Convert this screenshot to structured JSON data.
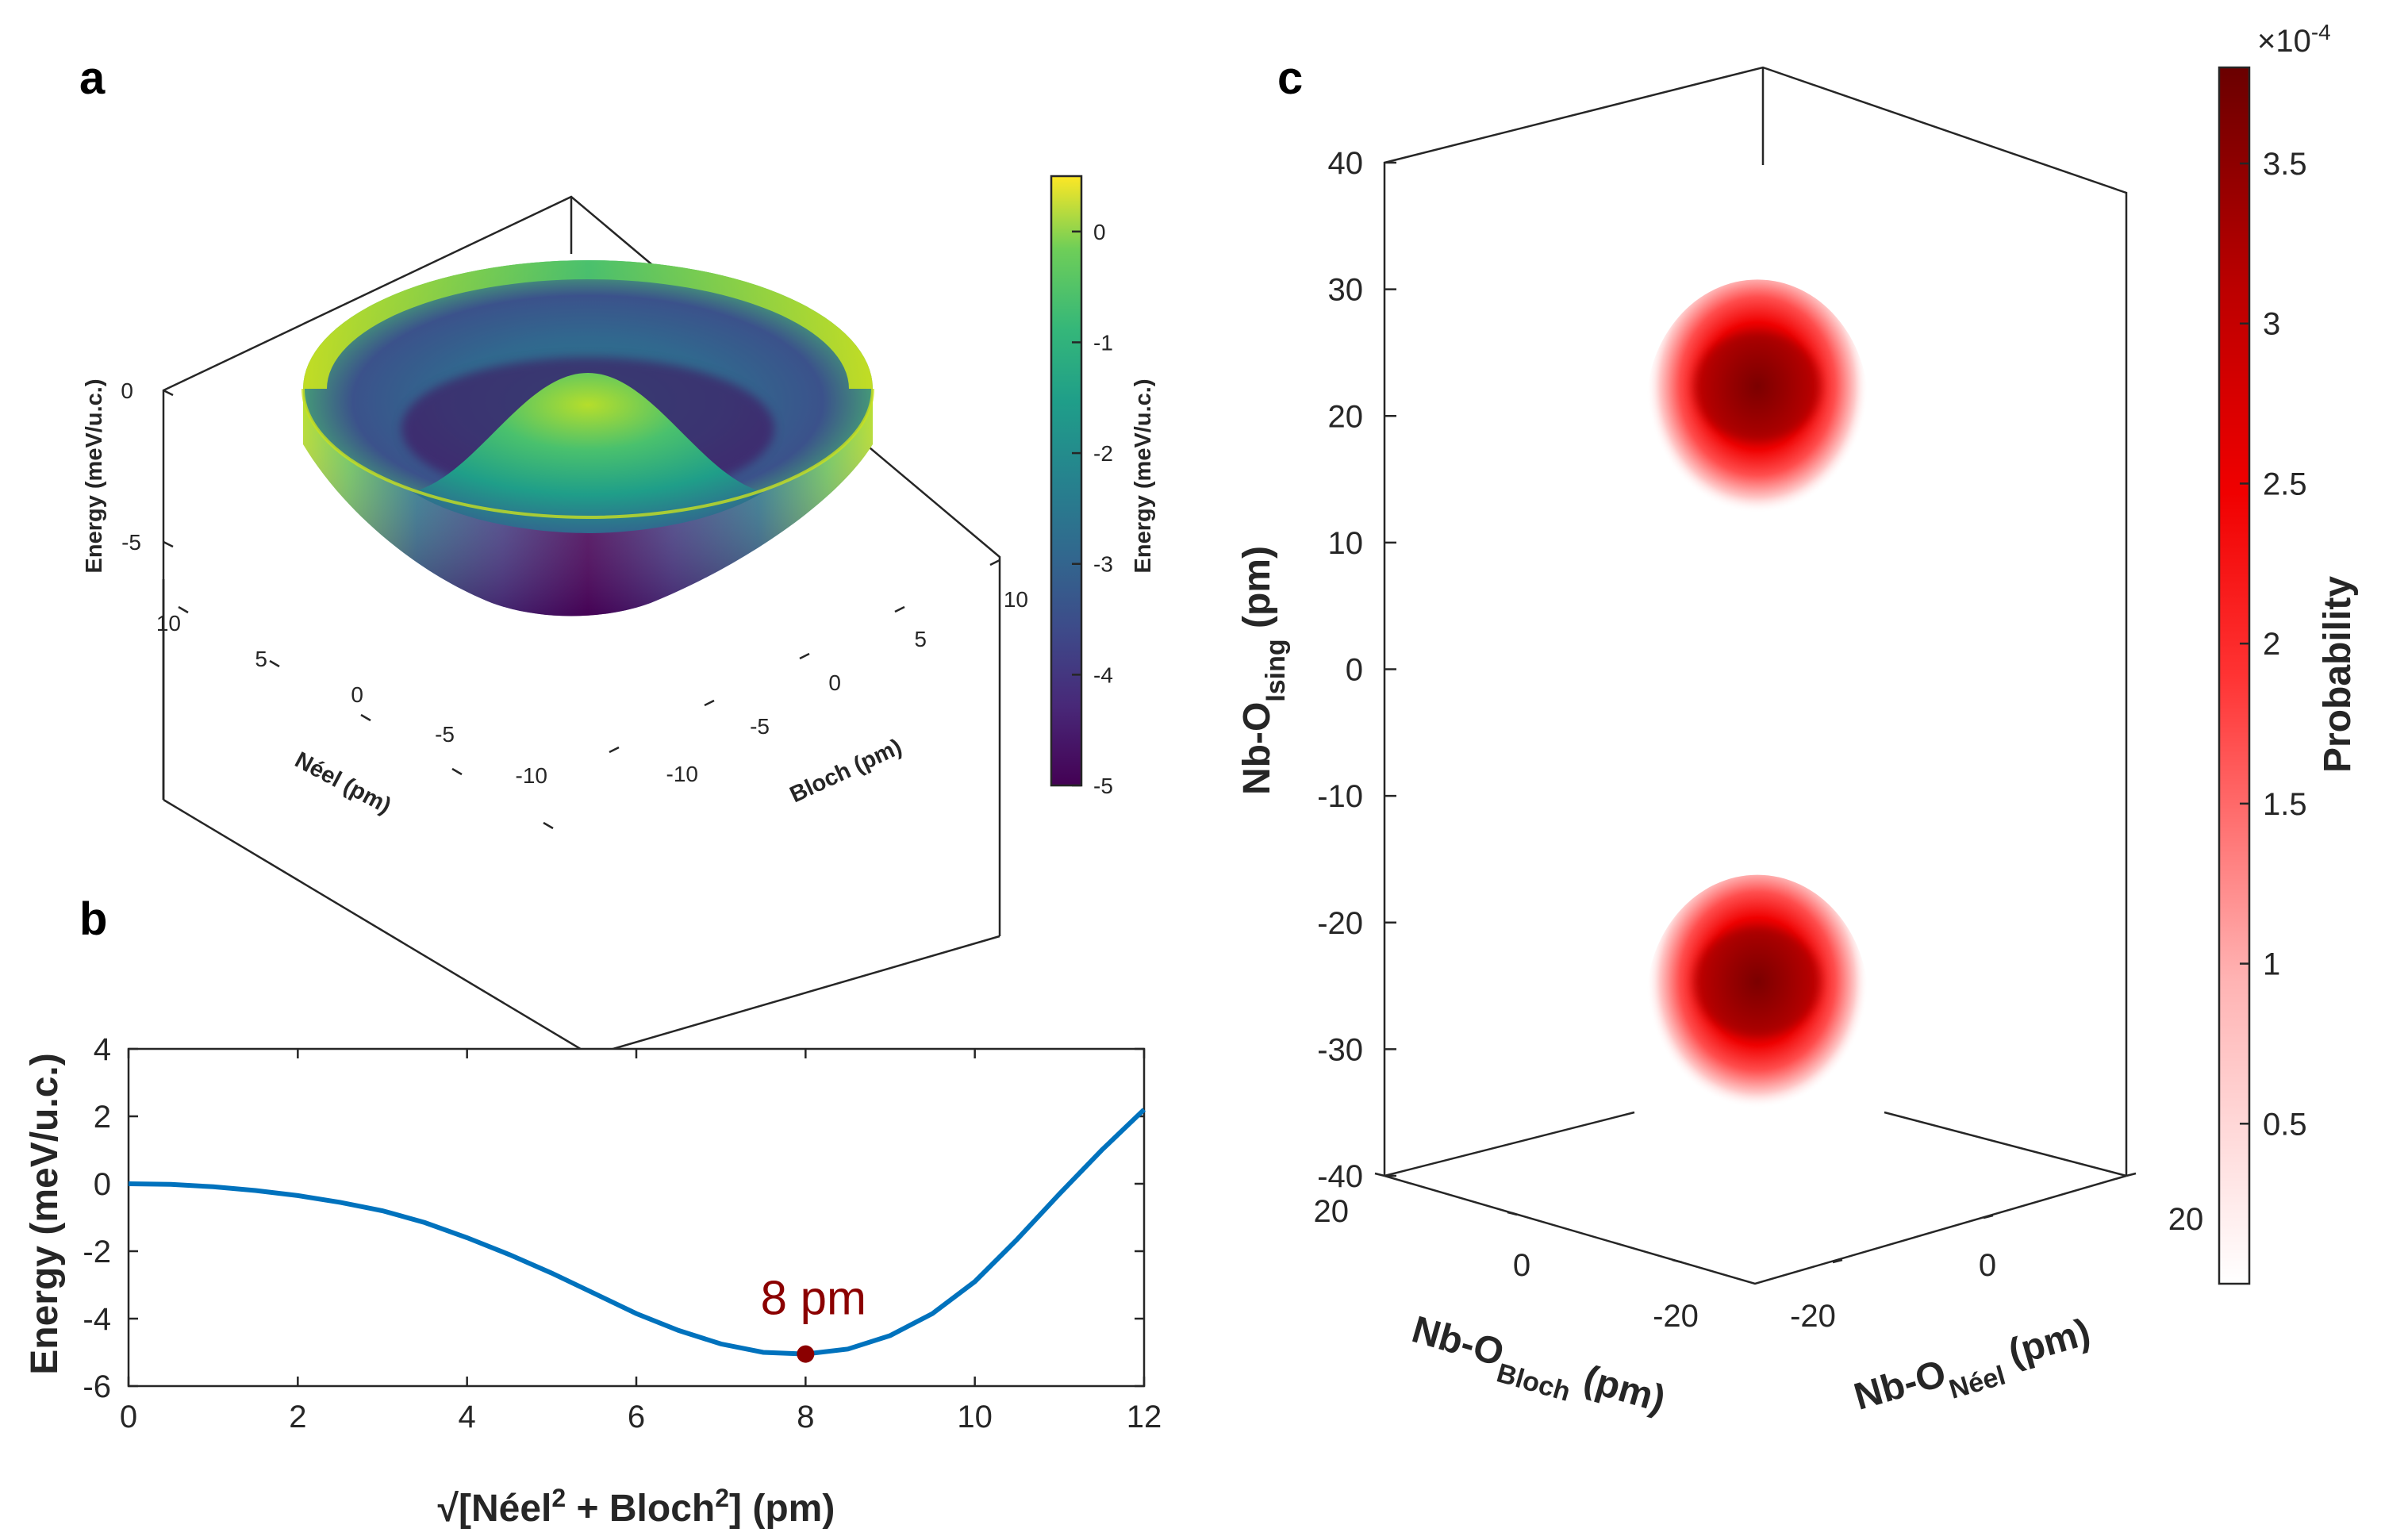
{
  "figure": {
    "panel_letters": {
      "a": "a",
      "b": "b",
      "c": "c"
    }
  },
  "chart_data": [
    {
      "id": "a",
      "type": "surface3d",
      "colormap": "viridis",
      "axes": {
        "x": {
          "label": "Néel (pm)",
          "ticks": [
            "10",
            "5",
            "0",
            "-5",
            "-10"
          ],
          "range": [
            -12,
            12
          ]
        },
        "y": {
          "label": "Bloch (pm)",
          "ticks": [
            "-10",
            "-5",
            "0",
            "5",
            "10"
          ],
          "range": [
            -12,
            12
          ]
        },
        "z": {
          "label": "Energy (meV/u.c.)",
          "ticks": [
            "0",
            "-5"
          ],
          "range": [
            -5.2,
            2
          ]
        }
      },
      "colorbar": {
        "label": "Energy (meV/u.c.)",
        "ticks": [
          "0",
          "-1",
          "-2",
          "-3",
          "-4",
          "-5"
        ],
        "range": [
          -5,
          0.5
        ]
      },
      "surface": {
        "description_formula": "Mexican hat, E(r) minimum -5.05 at r=8, E(0)=0, E(12)=2.2",
        "r_max": 12
      }
    },
    {
      "id": "b",
      "type": "line",
      "xlabel_main": "√[Néel",
      "xlabel_sup1": "2",
      "xlabel_mid": " + Bloch",
      "xlabel_sup2": "2",
      "xlabel_end": "] (pm)",
      "ylabel": "Energy (meV/u.c.)",
      "xlim": [
        0,
        12
      ],
      "ylim": [
        -6,
        4
      ],
      "xticks": [
        "0",
        "2",
        "4",
        "6",
        "8",
        "10",
        "12"
      ],
      "yticks": [
        "4",
        "2",
        "0",
        "-2",
        "-4",
        "-6"
      ],
      "series": [
        {
          "name": "energy",
          "color": "#0072BD",
          "x": [
            0,
            0.5,
            1,
            1.5,
            2,
            2.5,
            3,
            3.5,
            4,
            4.5,
            5,
            5.5,
            6,
            6.5,
            7,
            7.5,
            8,
            8.5,
            9,
            9.5,
            10,
            10.5,
            11,
            11.5,
            12
          ],
          "y": [
            0,
            -0.02,
            -0.09,
            -0.2,
            -0.35,
            -0.55,
            -0.8,
            -1.15,
            -1.6,
            -2.1,
            -2.65,
            -3.25,
            -3.85,
            -4.35,
            -4.75,
            -5.0,
            -5.05,
            -4.9,
            -4.5,
            -3.85,
            -2.9,
            -1.65,
            -0.3,
            1.0,
            2.2
          ]
        }
      ],
      "marker": {
        "x": 8,
        "y": -5.05,
        "color": "#8B0000"
      },
      "annotation": {
        "text": "8 pm",
        "color": "#8B0000"
      }
    },
    {
      "id": "c",
      "type": "density3d",
      "colormap": "white-to-red",
      "axes": {
        "z": {
          "label_main": "Nb-O",
          "label_sub": "Ising",
          "label_end": " (pm)",
          "ticks": [
            "40",
            "30",
            "20",
            "10",
            "0",
            "-10",
            "-20",
            "-30",
            "-40"
          ],
          "range": [
            -40,
            40
          ]
        },
        "bloch": {
          "label_main": "Nb-O",
          "label_sub": "Bloch",
          "label_end": " (pm)",
          "ticks": [
            "20",
            "0",
            "-20"
          ]
        },
        "neel": {
          "label_main": "Nb-O",
          "label_sub": "Néel",
          "label_end": " (pm)",
          "ticks": [
            "-20",
            "0",
            "20"
          ]
        }
      },
      "lobes": [
        {
          "center_ising": 22
        },
        {
          "center_ising": -25
        }
      ],
      "colorbar": {
        "label": "Probability",
        "multiplier_base": "×10",
        "multiplier_exp": "-4",
        "ticks": [
          "3.5",
          "3",
          "2.5",
          "2",
          "1.5",
          "1",
          "0.5"
        ],
        "range": [
          0,
          3.8
        ]
      }
    }
  ]
}
